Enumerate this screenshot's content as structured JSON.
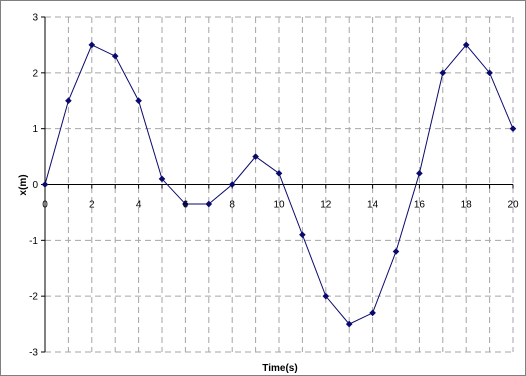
{
  "chart_data": {
    "type": "line",
    "title": "",
    "xlabel": "Time(s)",
    "ylabel": "x(m)",
    "xlim": [
      0,
      20
    ],
    "ylim": [
      -3,
      3
    ],
    "x_ticks": [
      0,
      2,
      4,
      6,
      8,
      10,
      12,
      14,
      16,
      18,
      20
    ],
    "y_ticks": [
      -3,
      -2,
      -1,
      0,
      1,
      2,
      3
    ],
    "grid": true,
    "legend": "none",
    "series": [
      {
        "color": "#0a0a6e",
        "marker": "diamond",
        "x": [
          0,
          1,
          2,
          3,
          4,
          5,
          6,
          7,
          8,
          9,
          10,
          11,
          12,
          13,
          14,
          15,
          16,
          17,
          18,
          19,
          20
        ],
        "y": [
          0,
          1.5,
          2.5,
          2.3,
          1.5,
          0.1,
          -0.35,
          -0.35,
          0,
          0.5,
          0.2,
          -0.9,
          -2.0,
          -2.5,
          -2.3,
          -1.2,
          0.2,
          2.0,
          2.5,
          2.0,
          1.0
        ]
      }
    ]
  }
}
